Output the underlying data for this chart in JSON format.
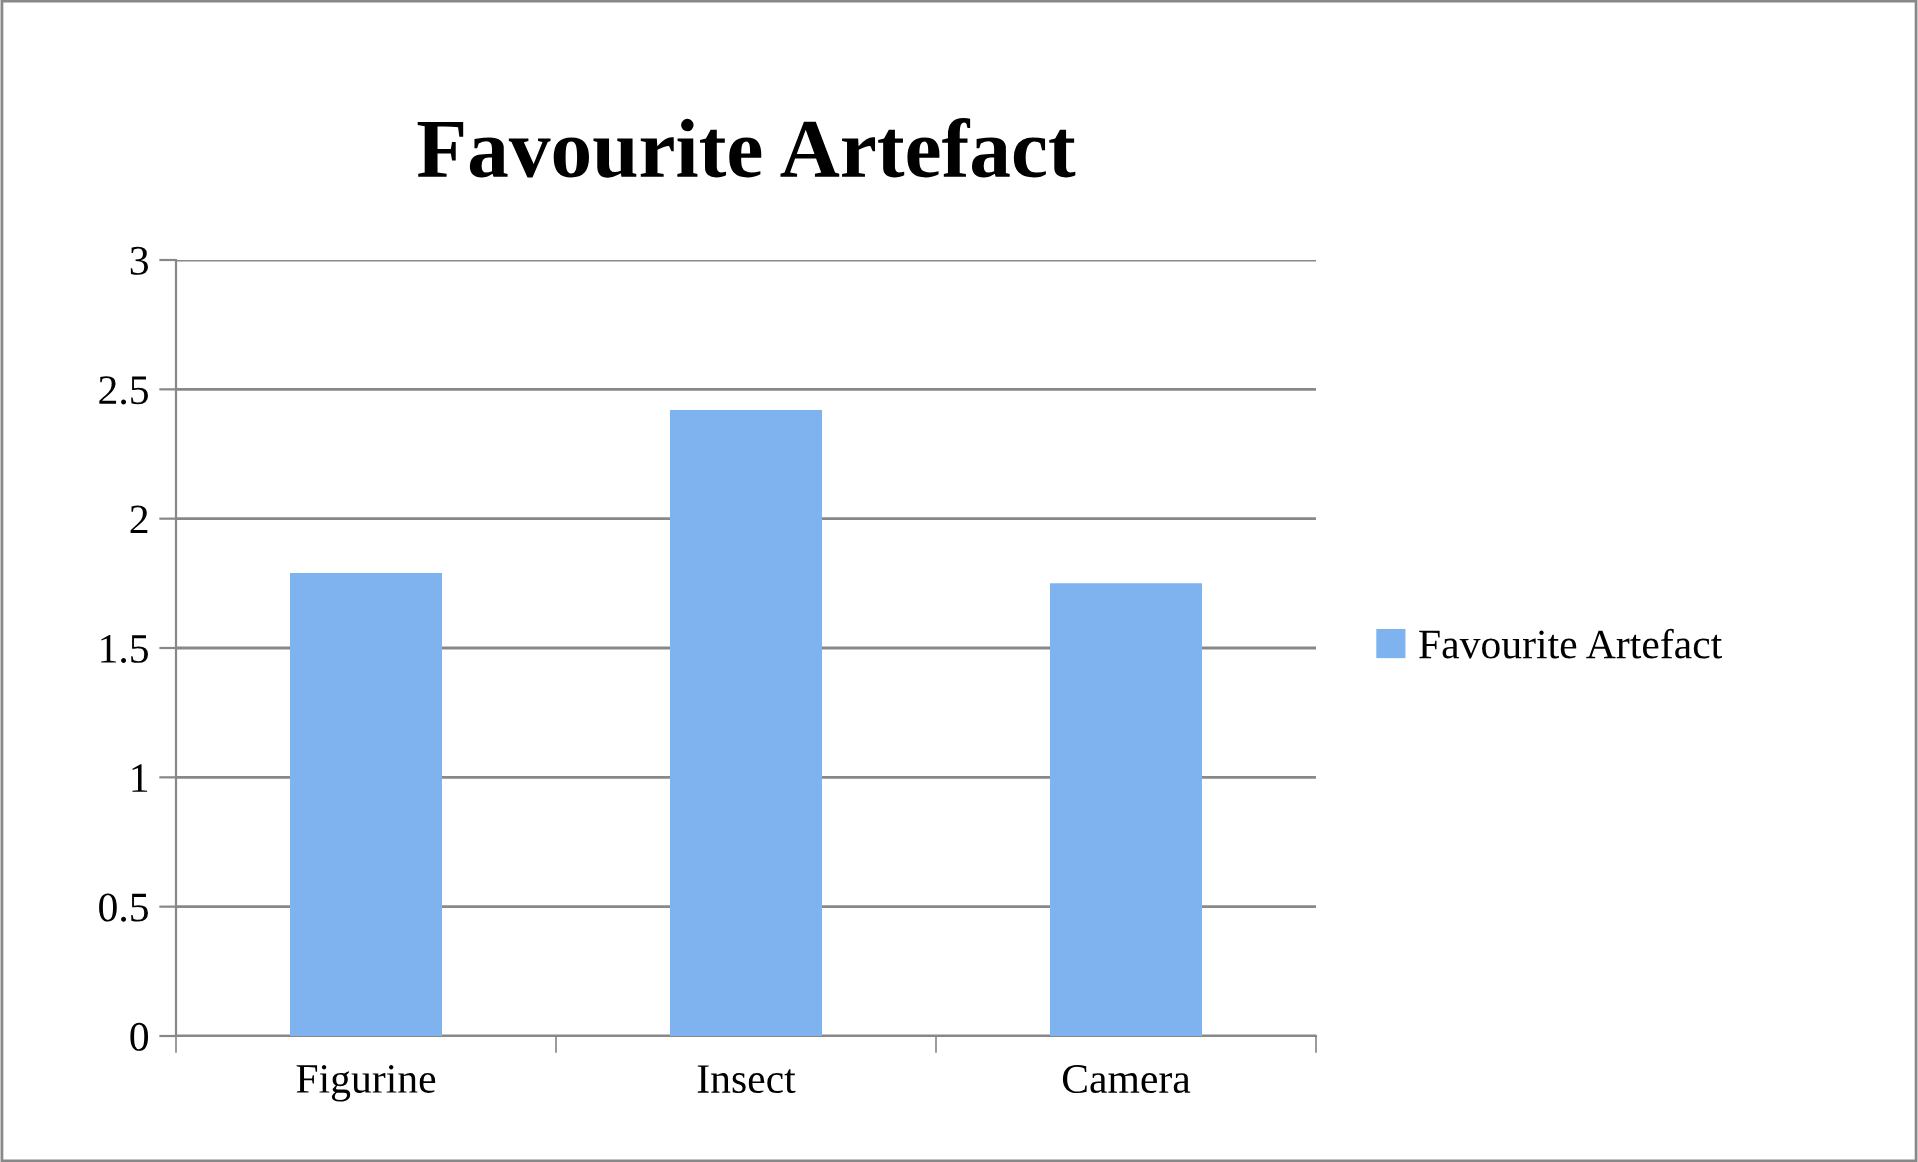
{
  "chart_data": {
    "type": "bar",
    "title": "Favourite Artefact",
    "categories": [
      "Figurine",
      "Insect",
      "Camera"
    ],
    "series": [
      {
        "name": "Favourite Artefact",
        "color": "#7fb3ef",
        "values": [
          1.79,
          2.42,
          1.75
        ]
      }
    ],
    "ylim": [
      0,
      3
    ],
    "yticks": [
      0,
      0.5,
      1,
      1.5,
      2,
      2.5,
      3
    ],
    "grid": "y",
    "legend": "right"
  }
}
